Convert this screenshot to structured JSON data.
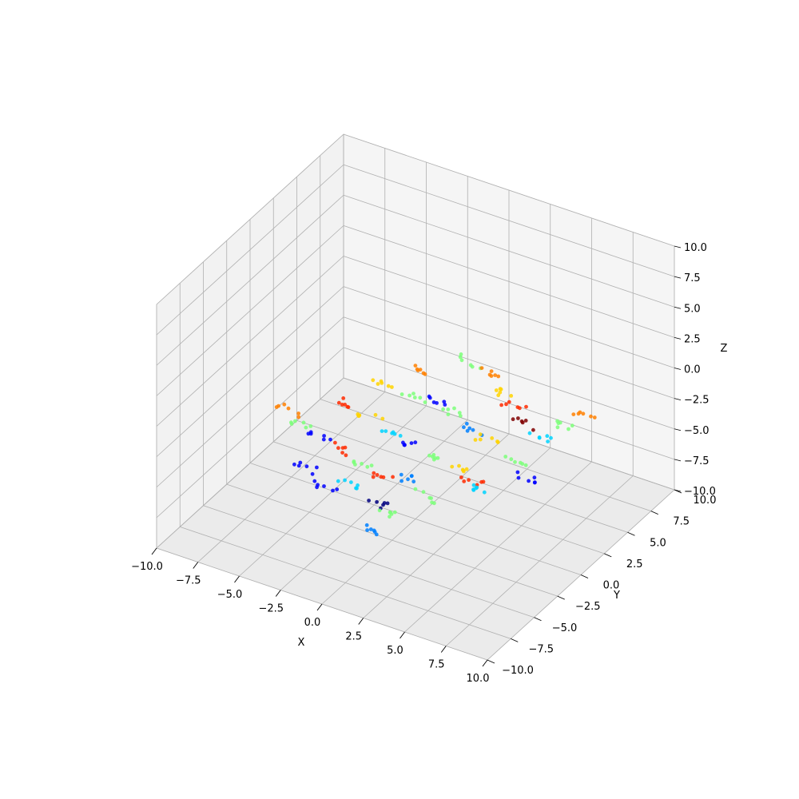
{
  "chart_data": {
    "type": "scatter",
    "projection": "3d",
    "title": "",
    "xlabel": "X",
    "ylabel": "Y",
    "zlabel": "Z",
    "xlim": [
      -10,
      10
    ],
    "ylim": [
      -10,
      10
    ],
    "zlim": [
      -10,
      10
    ],
    "grid": true,
    "x_ticks": [
      "−10.0",
      "−7.5",
      "−5.0",
      "−2.5",
      "0.0",
      "2.5",
      "5.0",
      "7.5",
      "10.0"
    ],
    "y_ticks": [
      "−10.0",
      "−7.5",
      "−5.0",
      "−2.5",
      "0.0",
      "2.5",
      "5.0",
      "7.5",
      "10.0"
    ],
    "z_ticks": [
      "−10.0",
      "−7.5",
      "−5.0",
      "−2.5",
      "0.0",
      "2.5",
      "5.0",
      "7.5",
      "10.0"
    ],
    "colormap": "jet",
    "marker_colors": [
      "#00007f",
      "#0000ff",
      "#0080ff",
      "#00d4ff",
      "#7dff7a",
      "#ffd400",
      "#ff8000",
      "#ff2a00",
      "#7f0000"
    ],
    "pane_colors": {
      "x_pane": "#f2f2f2",
      "y_pane": "#f5f5f5",
      "floor": "#ebebeb"
    },
    "clusters": [
      {
        "x": -1.5,
        "y": 3.5,
        "z": -1.0,
        "c": 6
      },
      {
        "x": 1.0,
        "y": 4.0,
        "z": 0.5,
        "c": 4
      },
      {
        "x": 2.5,
        "y": 3.5,
        "z": 0.8,
        "c": 6
      },
      {
        "x": 3.5,
        "y": 3.0,
        "z": 0.0,
        "c": 5
      },
      {
        "x": 4.5,
        "y": 2.5,
        "z": -0.5,
        "c": 7
      },
      {
        "x": 5.5,
        "y": 2.0,
        "z": -1.0,
        "c": 8
      },
      {
        "x": 6.5,
        "y": 2.0,
        "z": -1.5,
        "c": 3
      },
      {
        "x": 7.5,
        "y": 3.0,
        "z": -1.0,
        "c": 4
      },
      {
        "x": 8.0,
        "y": 4.0,
        "z": -0.5,
        "c": 6
      },
      {
        "x": -3.0,
        "y": 1.5,
        "z": -1.5,
        "c": 5
      },
      {
        "x": -1.0,
        "y": 1.5,
        "z": -1.5,
        "c": 4
      },
      {
        "x": 0.0,
        "y": 2.0,
        "z": -1.5,
        "c": 1
      },
      {
        "x": 1.5,
        "y": 1.5,
        "z": -1.5,
        "c": 4
      },
      {
        "x": 3.0,
        "y": 1.0,
        "z": -2.0,
        "c": 2
      },
      {
        "x": 4.0,
        "y": 0.5,
        "z": -2.0,
        "c": 5
      },
      {
        "x": 6.0,
        "y": 0.0,
        "z": -2.5,
        "c": 4
      },
      {
        "x": 7.0,
        "y": -0.5,
        "z": -3.0,
        "c": 1
      },
      {
        "x": -4.0,
        "y": -0.5,
        "z": -2.0,
        "c": 7
      },
      {
        "x": -2.5,
        "y": -0.5,
        "z": -2.5,
        "c": 5
      },
      {
        "x": -1.0,
        "y": -1.0,
        "z": -2.5,
        "c": 3
      },
      {
        "x": 0.5,
        "y": -1.0,
        "z": -3.0,
        "c": 1
      },
      {
        "x": 2.0,
        "y": -1.5,
        "z": -3.0,
        "c": 4
      },
      {
        "x": 3.5,
        "y": -1.5,
        "z": -3.0,
        "c": 5
      },
      {
        "x": 4.5,
        "y": -2.0,
        "z": -3.5,
        "c": 7
      },
      {
        "x": 5.5,
        "y": -2.5,
        "z": -3.5,
        "c": 3
      },
      {
        "x": -6.5,
        "y": -2.0,
        "z": -2.5,
        "c": 6
      },
      {
        "x": -5.5,
        "y": -2.5,
        "z": -3.0,
        "c": 4
      },
      {
        "x": -4.5,
        "y": -2.5,
        "z": -3.5,
        "c": 1
      },
      {
        "x": -3.0,
        "y": -3.0,
        "z": -3.5,
        "c": 7
      },
      {
        "x": -1.5,
        "y": -3.0,
        "z": -4.0,
        "c": 4
      },
      {
        "x": 0.0,
        "y": -3.5,
        "z": -4.0,
        "c": 7
      },
      {
        "x": 1.0,
        "y": -3.0,
        "z": -4.0,
        "c": 2
      },
      {
        "x": 2.5,
        "y": -3.5,
        "z": -4.5,
        "c": 4
      },
      {
        "x": -4.0,
        "y": -4.5,
        "z": -4.5,
        "c": 1
      },
      {
        "x": -2.5,
        "y": -5.0,
        "z": -5.0,
        "c": 1
      },
      {
        "x": -1.5,
        "y": -4.5,
        "z": -4.5,
        "c": 3
      },
      {
        "x": 0.5,
        "y": -5.0,
        "z": -5.0,
        "c": 0
      },
      {
        "x": 1.5,
        "y": -5.5,
        "z": -5.0,
        "c": 4
      },
      {
        "x": 1.5,
        "y": -7.0,
        "z": -5.5,
        "c": 2
      }
    ]
  }
}
